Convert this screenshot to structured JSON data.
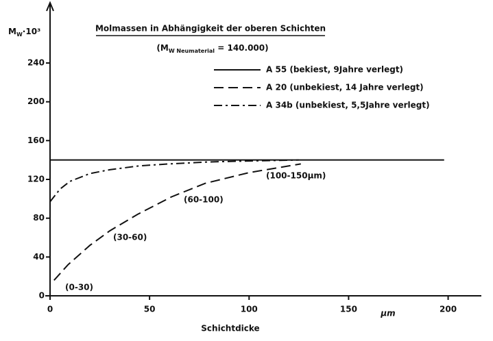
{
  "chart_data": {
    "type": "line",
    "title": "Molmassen in Abhängigkeit der oberen Schichten",
    "subtitle": {
      "pre": "(M",
      "sub": "W Neumaterial",
      "post": " = 140.000)"
    },
    "ylabel": {
      "main": "M",
      "sub": "W",
      "post": "·10³"
    },
    "xlabel": "Schichtdicke",
    "xunit": "µm",
    "xlim": [
      0,
      216
    ],
    "ylim": [
      0,
      300
    ],
    "xticks": [
      0,
      50,
      100,
      150,
      200
    ],
    "yticks": [
      0,
      40,
      80,
      120,
      160,
      200,
      240
    ],
    "series": [
      {
        "name": "A 55 (bekiest, 9Jahre verlegt)",
        "color": "#111111",
        "dash": "solid",
        "x": [
          0,
          198
        ],
        "values": [
          140,
          140
        ]
      },
      {
        "name": "A 20 (unbekiest, 14 Jahre verlegt)",
        "color": "#111111",
        "dash": "dashed",
        "x": [
          2,
          9,
          20,
          30,
          44,
          61,
          78,
          100,
          126
        ],
        "values": [
          16,
          32,
          52,
          67,
          84,
          102,
          116,
          127,
          136
        ]
      },
      {
        "name": "A 34b (unbekiest, 5,5Jahre verlegt)",
        "color": "#111111",
        "dash": "dashdot",
        "x": [
          0,
          5,
          10,
          20,
          30,
          45,
          60,
          80,
          100,
          125
        ],
        "values": [
          97,
          110,
          118,
          126,
          130,
          134,
          136,
          138,
          139,
          140
        ]
      }
    ],
    "annotations": [
      "(0-30)",
      "(30-60)",
      "(60-100)",
      "(100-150µm)"
    ]
  }
}
